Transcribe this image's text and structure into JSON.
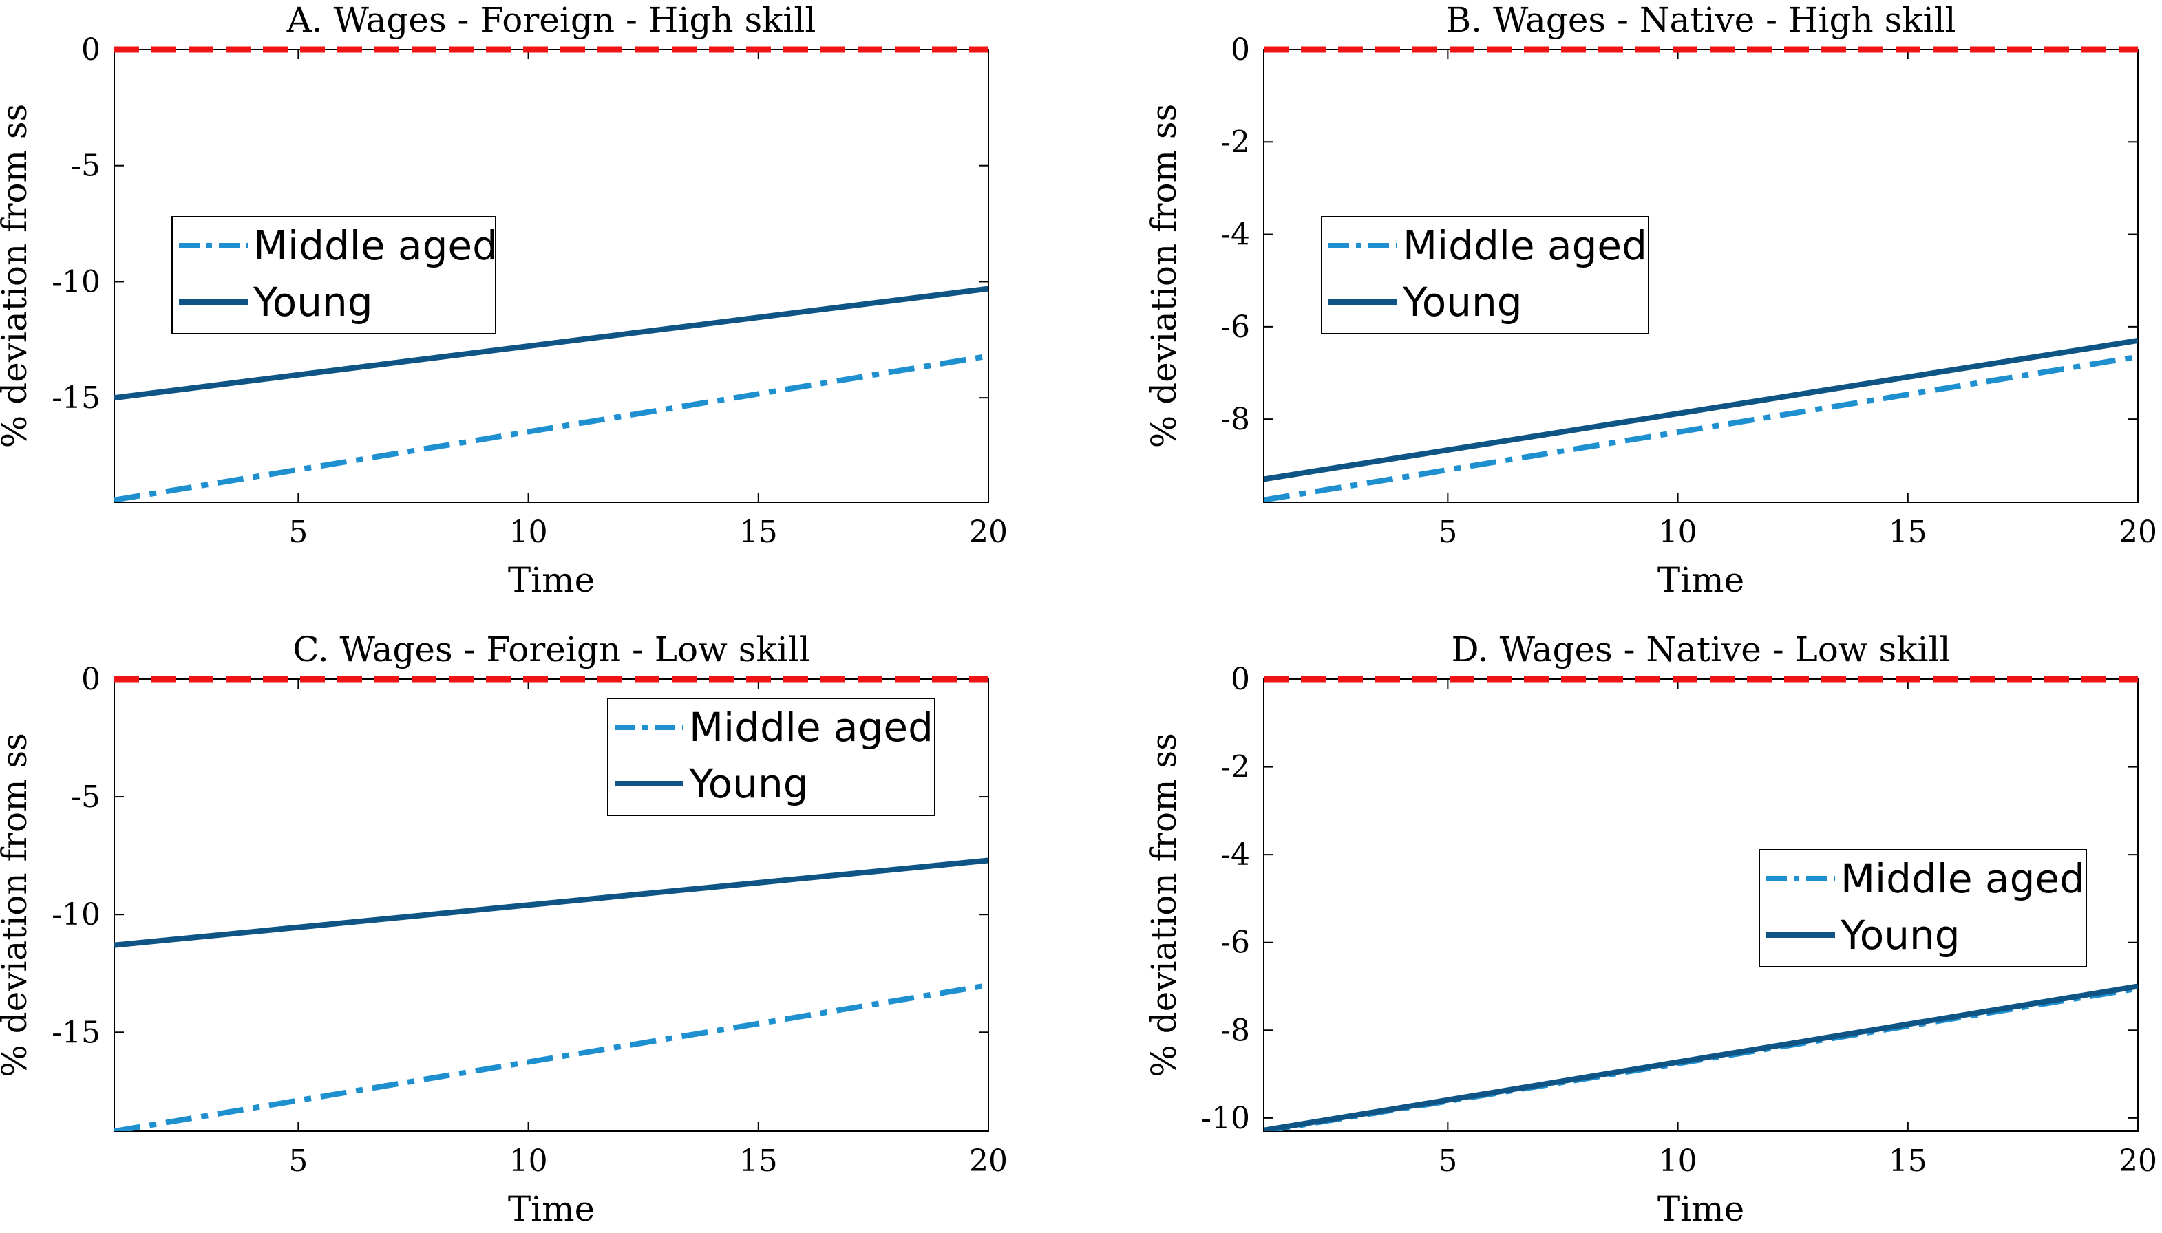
{
  "colors": {
    "middle_aged": "#1E90D0",
    "young": "#0E5585",
    "zero_line": "#F01414",
    "axes": "#000000"
  },
  "chart_data": [
    {
      "type": "line",
      "title": "A. Wages - Foreign - High skill",
      "xlabel": "Time",
      "ylabel": "% deviation from ss",
      "xlim": [
        1,
        20
      ],
      "ylim": [
        -19.5,
        0
      ],
      "xticks": [
        5,
        10,
        15,
        20
      ],
      "yticks": [
        0,
        -5,
        -10,
        -15
      ],
      "legend": "middle-left",
      "series": [
        {
          "name": "Middle aged",
          "style": "dashdot",
          "x": [
            1,
            20
          ],
          "y": [
            -19.4,
            -13.2
          ]
        },
        {
          "name": "Young",
          "style": "solid",
          "x": [
            1,
            20
          ],
          "y": [
            -15.0,
            -10.3
          ]
        },
        {
          "name": "",
          "style": "dashed",
          "role": "zero",
          "x": [
            1,
            20
          ],
          "y": [
            0,
            0
          ]
        }
      ]
    },
    {
      "type": "line",
      "title": "B. Wages - Native - High skill",
      "xlabel": "Time",
      "ylabel": "% deviation from ss",
      "xlim": [
        1,
        20
      ],
      "ylim": [
        -9.8,
        0
      ],
      "xticks": [
        5,
        10,
        15,
        20
      ],
      "yticks": [
        0,
        -2,
        -4,
        -6,
        -8
      ],
      "legend": "middle-left",
      "series": [
        {
          "name": "Middle aged",
          "style": "dashdot",
          "x": [
            1,
            20
          ],
          "y": [
            -9.75,
            -6.65
          ]
        },
        {
          "name": "Young",
          "style": "solid",
          "x": [
            1,
            20
          ],
          "y": [
            -9.3,
            -6.3
          ]
        },
        {
          "name": "",
          "style": "dashed",
          "role": "zero",
          "x": [
            1,
            20
          ],
          "y": [
            0,
            0
          ]
        }
      ]
    },
    {
      "type": "line",
      "title": "C. Wages - Foreign - Low skill",
      "xlabel": "Time",
      "ylabel": "% deviation from ss",
      "xlim": [
        1,
        20
      ],
      "ylim": [
        -19.2,
        0
      ],
      "xticks": [
        5,
        10,
        15,
        20
      ],
      "yticks": [
        0,
        -5,
        -10,
        -15
      ],
      "legend": "top-right",
      "series": [
        {
          "name": "Middle aged",
          "style": "dashdot",
          "x": [
            1,
            20
          ],
          "y": [
            -19.2,
            -13.0
          ]
        },
        {
          "name": "Young",
          "style": "solid",
          "x": [
            1,
            20
          ],
          "y": [
            -11.3,
            -7.7
          ]
        },
        {
          "name": "",
          "style": "dashed",
          "role": "zero",
          "x": [
            1,
            20
          ],
          "y": [
            0,
            0
          ]
        }
      ]
    },
    {
      "type": "line",
      "title": "D. Wages - Native - Low skill",
      "xlabel": "Time",
      "ylabel": "% deviation from ss",
      "xlim": [
        1,
        20
      ],
      "ylim": [
        -10.3,
        0
      ],
      "xticks": [
        5,
        10,
        15,
        20
      ],
      "yticks": [
        0,
        -2,
        -4,
        -6,
        -8,
        -10
      ],
      "legend": "middle-right",
      "series": [
        {
          "name": "Middle aged",
          "style": "dashdot",
          "x": [
            1,
            20
          ],
          "y": [
            -10.3,
            -7.05
          ]
        },
        {
          "name": "Young",
          "style": "solid",
          "x": [
            1,
            20
          ],
          "y": [
            -10.28,
            -7.0
          ]
        },
        {
          "name": "",
          "style": "dashed",
          "role": "zero",
          "x": [
            1,
            20
          ],
          "y": [
            0,
            0
          ]
        }
      ]
    }
  ]
}
